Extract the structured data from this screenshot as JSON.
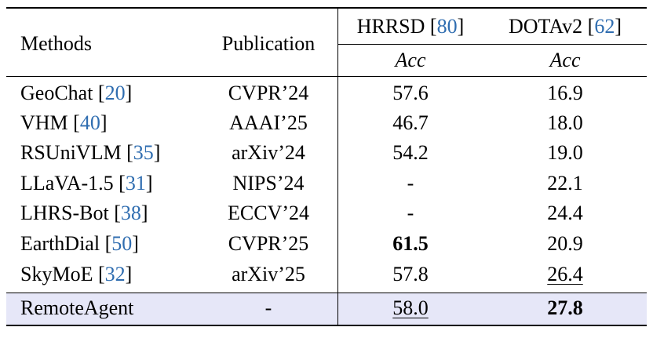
{
  "table": {
    "header": {
      "methods": "Methods",
      "publication": "Publication",
      "hrrsd": {
        "name": "HRRSD",
        "ref": "80",
        "metric": "Acc"
      },
      "dota": {
        "name": "DOTAv2",
        "ref": "62",
        "metric": "Acc"
      }
    },
    "rows": [
      {
        "method": "GeoChat",
        "ref": "20",
        "pub": "CVPR’24",
        "hrrsd": "57.6",
        "dota": "16.9"
      },
      {
        "method": "VHM",
        "ref": "40",
        "pub": "AAAI’25",
        "hrrsd": "46.7",
        "dota": "18.0"
      },
      {
        "method": "RSUniVLM",
        "ref": "35",
        "pub": "arXiv’24",
        "hrrsd": "54.2",
        "dota": "19.0"
      },
      {
        "method": "LLaVA-1.5",
        "ref": "31",
        "pub": "NIPS’24",
        "hrrsd": "-",
        "dota": "22.1"
      },
      {
        "method": "LHRS-Bot",
        "ref": "38",
        "pub": "ECCV’24",
        "hrrsd": "-",
        "dota": "24.4"
      },
      {
        "method": "EarthDial",
        "ref": "50",
        "pub": "CVPR’25",
        "hrrsd": "61.5",
        "dota": "20.9"
      },
      {
        "method": "SkyMoE",
        "ref": "32",
        "pub": "arXiv’25",
        "hrrsd": "57.8",
        "dota": "26.4"
      },
      {
        "method": "RemoteAgent",
        "ref": "",
        "pub": "-",
        "hrrsd": "58.0",
        "dota": "27.8"
      }
    ],
    "colors": {
      "ref_link": "#2f6db0",
      "highlight_row": "#e6e7f8"
    }
  }
}
